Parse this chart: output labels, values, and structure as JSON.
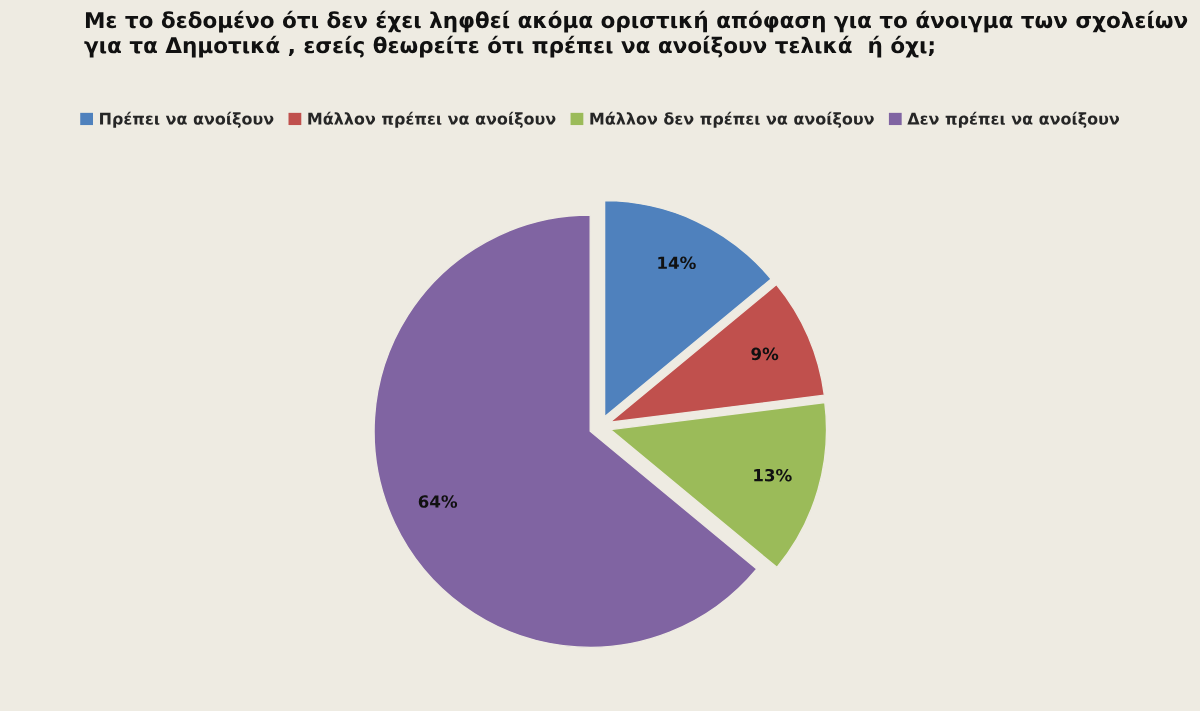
{
  "chart_data": {
    "type": "pie",
    "title": "Με το δεδομένο ότι δεν έχει ληφθεί ακόμα οριστική απόφαση για το άνοιγμα των σχολείων για τα Δημοτικά , εσείς θεωρείτε ότι πρέπει να ανοίξουν τελικά  ή όχι;",
    "categories": [
      "Πρέπει να ανοίξουν",
      "Μάλλον πρέπει να ανοίξουν",
      "Μάλλον δεν πρέπει να ανοίξουν",
      "Δεν πρέπει να ανοίξουν"
    ],
    "values": [
      14,
      9,
      13,
      64
    ],
    "colors": [
      "#4f81bd",
      "#c0504d",
      "#9bbb59",
      "#8064a2"
    ],
    "value_labels": [
      "14%",
      "9%",
      "13%",
      "64%"
    ],
    "legend": "top"
  }
}
